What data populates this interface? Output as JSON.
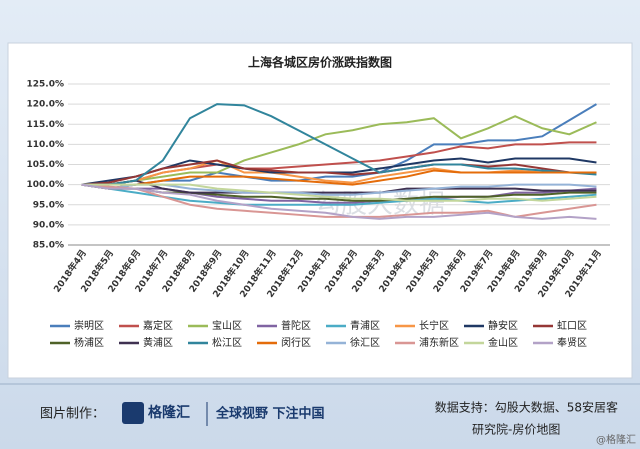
{
  "chart_data": {
    "type": "line",
    "title": "上海各城区房价涨跌指数图",
    "categories": [
      "2018年4月",
      "2018年5月",
      "2018年6月",
      "2018年7月",
      "2018年8月",
      "2018年9月",
      "2018年10月",
      "2018年11月",
      "2018年12月",
      "2019年1月",
      "2019年2月",
      "2019年3月",
      "2019年4月",
      "2019年5月",
      "2019年6月",
      "2019年7月",
      "2019年8月",
      "2019年9月",
      "2019年10月",
      "2019年11月"
    ],
    "series": [
      {
        "name": "崇明区",
        "color": "#4a7ebb",
        "values": [
          100,
          99,
          100,
          101,
          101,
          103,
          102,
          101,
          101,
          102,
          102,
          103,
          106,
          110,
          110,
          111,
          111,
          112,
          116,
          120
        ]
      },
      {
        "name": "嘉定区",
        "color": "#c0504d",
        "values": [
          100,
          100,
          101,
          103,
          104,
          105,
          104,
          104,
          104.5,
          105,
          105.5,
          106,
          107,
          108,
          109.5,
          109,
          110,
          110,
          110.5,
          110.5
        ]
      },
      {
        "name": "宝山区",
        "color": "#9bbb59",
        "values": [
          100,
          100,
          101,
          102,
          103,
          103,
          106,
          108,
          110,
          112.5,
          113.5,
          115,
          115.5,
          116.5,
          111.5,
          114,
          117,
          114,
          112.5,
          115.5
        ]
      },
      {
        "name": "普陀区",
        "color": "#8064a2",
        "values": [
          100,
          99,
          99,
          99,
          98,
          97,
          96.5,
          96,
          96,
          95.5,
          95.5,
          96,
          96,
          96.5,
          97,
          97,
          98,
          98,
          98.5,
          99
        ]
      },
      {
        "name": "青浦区",
        "color": "#4bacc6",
        "values": [
          100,
          99,
          98,
          97,
          96,
          95.5,
          95,
          95,
          95,
          95,
          95,
          95.5,
          96,
          96.5,
          96,
          95.5,
          96,
          96.5,
          97,
          97.5
        ]
      },
      {
        "name": "长宁区",
        "color": "#f79646",
        "values": [
          100,
          100,
          101,
          103,
          104,
          106,
          103,
          103,
          102,
          101,
          100.5,
          102,
          103,
          104,
          103,
          103,
          103.5,
          103,
          103,
          103
        ]
      },
      {
        "name": "静安区",
        "color": "#1f3864",
        "values": [
          100,
          101,
          102,
          104,
          106,
          105,
          104,
          103,
          103,
          103,
          103,
          104,
          105,
          106,
          106.5,
          105.5,
          106.5,
          106.5,
          106.5,
          105.5
        ]
      },
      {
        "name": "虹口区",
        "color": "#953735",
        "values": [
          100,
          100.5,
          102,
          104,
          105,
          106,
          104,
          103.5,
          103,
          103,
          102.5,
          103,
          104,
          105,
          105,
          104.5,
          105,
          104,
          103,
          103
        ]
      },
      {
        "name": "杨浦区",
        "color": "#4f6228",
        "values": [
          100,
          99,
          99,
          98,
          98,
          97.5,
          97,
          97,
          96.5,
          96.5,
          96,
          96,
          96.5,
          97,
          97,
          97,
          97.5,
          97.5,
          98,
          98
        ]
      },
      {
        "name": "黄浦区",
        "color": "#3f3151",
        "values": [
          100,
          100,
          101,
          99,
          98,
          98,
          98,
          98,
          98,
          98,
          98,
          98,
          99,
          99,
          99,
          99,
          99,
          98.5,
          98.5,
          98.5
        ]
      },
      {
        "name": "松江区",
        "color": "#31859c",
        "values": [
          100,
          100,
          101,
          106,
          116.5,
          120,
          119.7,
          117,
          113.5,
          110,
          106.5,
          103,
          104,
          105,
          105,
          104,
          104,
          103.5,
          103,
          102.5
        ]
      },
      {
        "name": "闵行区",
        "color": "#e46c0a",
        "values": [
          100,
          99,
          100,
          101,
          102,
          102,
          102,
          101.5,
          101,
          100.5,
          100,
          101,
          102,
          103.5,
          103,
          103,
          103,
          103,
          103,
          103
        ]
      },
      {
        "name": "徐汇区",
        "color": "#95b3d7",
        "values": [
          100,
          99,
          100,
          100,
          99,
          98.5,
          98,
          98,
          98,
          97.5,
          97.5,
          98,
          98.5,
          99,
          99.5,
          99.5,
          100,
          100,
          100,
          99.5
        ]
      },
      {
        "name": "浦东新区",
        "color": "#d99694",
        "values": [
          100,
          99.5,
          99,
          97,
          95,
          94,
          93.5,
          93,
          92.5,
          92,
          92,
          92,
          92.5,
          93,
          93,
          93.5,
          92,
          93,
          94,
          95
        ]
      },
      {
        "name": "金山区",
        "color": "#c3d69b",
        "values": [
          100,
          100,
          100,
          100,
          100,
          99,
          98.5,
          98,
          97.5,
          97,
          96.5,
          96.5,
          96,
          96,
          96,
          96.5,
          96.5,
          96,
          96.5,
          97
        ]
      },
      {
        "name": "奉贤区",
        "color": "#b3a2c7",
        "values": [
          100,
          99,
          99,
          98,
          97.5,
          96,
          95,
          94,
          93.5,
          93,
          92,
          91.5,
          92,
          92,
          92.5,
          93,
          92,
          91.5,
          92,
          91.5
        ]
      }
    ],
    "ylim": [
      85,
      125
    ],
    "yticks": [
      {
        "value": 85,
        "label": "85.0%"
      },
      {
        "value": 90,
        "label": "90.0%"
      },
      {
        "value": 95,
        "label": "95.0%"
      },
      {
        "value": 100,
        "label": "100.0%"
      },
      {
        "value": 105,
        "label": "105.0%"
      },
      {
        "value": 110,
        "label": "110.0%"
      },
      {
        "value": 115,
        "label": "115.0%"
      },
      {
        "value": 120,
        "label": "120.0%"
      },
      {
        "value": 125,
        "label": "125.0%"
      }
    ],
    "grid": true,
    "watermark": "勾股大数据"
  },
  "footer": {
    "credit_label": "图片制作：",
    "logo": "格隆汇",
    "slogan": "全球视野 下注中国",
    "source_line1": "数据支持：勾股大数据、58安居客",
    "source_line2": "研究院-房价地图",
    "handle": "@格隆汇"
  }
}
